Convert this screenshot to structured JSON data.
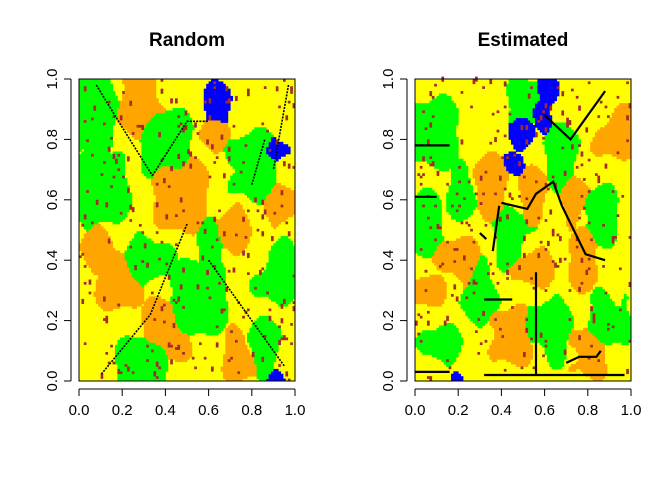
{
  "chart_data": [
    {
      "type": "heatmap",
      "title": "Random",
      "xlabel": "",
      "ylabel": "",
      "xlim": [
        0.0,
        1.0
      ],
      "ylim": [
        0.0,
        1.0
      ],
      "x_ticks": [
        "0.0",
        "0.2",
        "0.4",
        "0.6",
        "0.8",
        "1.0"
      ],
      "y_ticks": [
        "0.0",
        "0.2",
        "0.4",
        "0.6",
        "0.8",
        "1.0"
      ],
      "grid": false,
      "legend": "none",
      "colors": {
        "class1": "#ffff00",
        "class2": "#ffa500",
        "class3": "#00ff00",
        "class4": "#0000ff",
        "class5": "#a52a2a",
        "boundary": "#000000"
      },
      "regions": [
        {
          "color": "class3",
          "x": 0.05,
          "y": 0.9,
          "r": 0.14
        },
        {
          "color": "class3",
          "x": 0.1,
          "y": 0.62,
          "r": 0.13
        },
        {
          "color": "class3",
          "x": 0.4,
          "y": 0.8,
          "r": 0.12
        },
        {
          "color": "class3",
          "x": 0.82,
          "y": 0.72,
          "r": 0.12
        },
        {
          "color": "class3",
          "x": 0.55,
          "y": 0.27,
          "r": 0.14
        },
        {
          "color": "class3",
          "x": 0.32,
          "y": 0.4,
          "r": 0.1
        },
        {
          "color": "class3",
          "x": 0.92,
          "y": 0.35,
          "r": 0.1
        },
        {
          "color": "class3",
          "x": 0.3,
          "y": 0.05,
          "r": 0.12
        },
        {
          "color": "class3",
          "x": 0.86,
          "y": 0.12,
          "r": 0.09
        },
        {
          "color": "class3",
          "x": 0.62,
          "y": 0.45,
          "r": 0.08
        },
        {
          "color": "class2",
          "x": 0.28,
          "y": 0.92,
          "r": 0.12
        },
        {
          "color": "class2",
          "x": 0.48,
          "y": 0.62,
          "r": 0.13
        },
        {
          "color": "class2",
          "x": 0.18,
          "y": 0.33,
          "r": 0.1
        },
        {
          "color": "class2",
          "x": 0.7,
          "y": 0.5,
          "r": 0.09
        },
        {
          "color": "class2",
          "x": 0.4,
          "y": 0.17,
          "r": 0.11
        },
        {
          "color": "class2",
          "x": 0.75,
          "y": 0.08,
          "r": 0.08
        },
        {
          "color": "class2",
          "x": 0.95,
          "y": 0.58,
          "r": 0.08
        },
        {
          "color": "class2",
          "x": 0.62,
          "y": 0.83,
          "r": 0.07
        },
        {
          "color": "class2",
          "x": 0.08,
          "y": 0.44,
          "r": 0.08
        },
        {
          "color": "class4",
          "x": 0.65,
          "y": 0.9,
          "r": 0.08
        },
        {
          "color": "class4",
          "x": 0.88,
          "y": 0.76,
          "r": 0.07
        },
        {
          "color": "class4",
          "x": 0.32,
          "y": 0.01,
          "r": 0.03
        },
        {
          "color": "class4",
          "x": 0.92,
          "y": 0.0,
          "r": 0.03
        }
      ],
      "boundaries": [
        [
          [
            0.08,
            0.98
          ],
          [
            0.2,
            0.84
          ],
          [
            0.34,
            0.68
          ]
        ],
        [
          [
            0.34,
            0.68
          ],
          [
            0.5,
            0.86
          ],
          [
            0.6,
            0.86
          ]
        ],
        [
          [
            0.5,
            0.52
          ],
          [
            0.33,
            0.22
          ],
          [
            0.1,
            0.02
          ]
        ],
        [
          [
            0.6,
            0.4
          ],
          [
            0.95,
            0.05
          ]
        ],
        [
          [
            0.8,
            0.65
          ],
          [
            0.86,
            0.8
          ]
        ],
        [
          [
            0.97,
            0.98
          ],
          [
            0.9,
            0.7
          ]
        ]
      ]
    },
    {
      "type": "heatmap",
      "title": "Estimated",
      "xlabel": "",
      "ylabel": "",
      "xlim": [
        0.0,
        1.0
      ],
      "ylim": [
        0.0,
        1.0
      ],
      "x_ticks": [
        "0.0",
        "0.2",
        "0.4",
        "0.6",
        "0.8",
        "1.0"
      ],
      "y_ticks": [
        "0.0",
        "0.2",
        "0.4",
        "0.6",
        "0.8",
        "1.0"
      ],
      "grid": false,
      "legend": "none",
      "colors": {
        "class1": "#ffff00",
        "class2": "#ffa500",
        "class3": "#00ff00",
        "class4": "#0000ff",
        "class5": "#a52a2a",
        "boundary": "#000000"
      },
      "regions": [
        {
          "color": "class3",
          "x": 0.1,
          "y": 0.82,
          "r": 0.12
        },
        {
          "color": "class3",
          "x": 0.05,
          "y": 0.52,
          "r": 0.1
        },
        {
          "color": "class3",
          "x": 0.22,
          "y": 0.62,
          "r": 0.08
        },
        {
          "color": "class3",
          "x": 0.45,
          "y": 0.48,
          "r": 0.09
        },
        {
          "color": "class3",
          "x": 0.68,
          "y": 0.75,
          "r": 0.1
        },
        {
          "color": "class3",
          "x": 0.85,
          "y": 0.55,
          "r": 0.09
        },
        {
          "color": "class3",
          "x": 0.3,
          "y": 0.28,
          "r": 0.1
        },
        {
          "color": "class3",
          "x": 0.62,
          "y": 0.18,
          "r": 0.11
        },
        {
          "color": "class3",
          "x": 0.9,
          "y": 0.2,
          "r": 0.09
        },
        {
          "color": "class3",
          "x": 0.12,
          "y": 0.12,
          "r": 0.08
        },
        {
          "color": "class3",
          "x": 0.52,
          "y": 0.92,
          "r": 0.08
        },
        {
          "color": "class2",
          "x": 0.35,
          "y": 0.65,
          "r": 0.1
        },
        {
          "color": "class2",
          "x": 0.55,
          "y": 0.62,
          "r": 0.08
        },
        {
          "color": "class2",
          "x": 0.2,
          "y": 0.4,
          "r": 0.09
        },
        {
          "color": "class2",
          "x": 0.55,
          "y": 0.38,
          "r": 0.08
        },
        {
          "color": "class2",
          "x": 0.78,
          "y": 0.4,
          "r": 0.09
        },
        {
          "color": "class2",
          "x": 0.45,
          "y": 0.15,
          "r": 0.09
        },
        {
          "color": "class2",
          "x": 0.8,
          "y": 0.1,
          "r": 0.08
        },
        {
          "color": "class2",
          "x": 0.92,
          "y": 0.82,
          "r": 0.08
        },
        {
          "color": "class2",
          "x": 0.05,
          "y": 0.3,
          "r": 0.07
        },
        {
          "color": "class2",
          "x": 0.75,
          "y": 0.6,
          "r": 0.07
        },
        {
          "color": "class4",
          "x": 0.5,
          "y": 0.82,
          "r": 0.06
        },
        {
          "color": "class4",
          "x": 0.56,
          "y": 0.9,
          "r": 0.06
        },
        {
          "color": "class4",
          "x": 0.62,
          "y": 0.97,
          "r": 0.05
        },
        {
          "color": "class4",
          "x": 0.43,
          "y": 0.74,
          "r": 0.05
        },
        {
          "color": "class4",
          "x": 0.27,
          "y": 0.66,
          "r": 0.02
        },
        {
          "color": "class4",
          "x": 0.18,
          "y": 0.01,
          "r": 0.02
        }
      ],
      "boundaries": [
        [
          [
            0.0,
            0.78
          ],
          [
            0.16,
            0.78
          ]
        ],
        [
          [
            0.0,
            0.61
          ],
          [
            0.1,
            0.61
          ]
        ],
        [
          [
            0.0,
            0.03
          ],
          [
            0.16,
            0.03
          ]
        ],
        [
          [
            0.32,
            0.27
          ],
          [
            0.45,
            0.27
          ]
        ],
        [
          [
            0.32,
            0.02
          ],
          [
            0.97,
            0.02
          ]
        ],
        [
          [
            0.3,
            0.49
          ],
          [
            0.33,
            0.47
          ]
        ],
        [
          [
            0.4,
            0.59
          ],
          [
            0.52,
            0.57
          ],
          [
            0.56,
            0.62
          ],
          [
            0.64,
            0.66
          ],
          [
            0.68,
            0.58
          ],
          [
            0.79,
            0.42
          ],
          [
            0.88,
            0.4
          ]
        ],
        [
          [
            0.6,
            0.88
          ],
          [
            0.72,
            0.8
          ],
          [
            0.88,
            0.96
          ]
        ],
        [
          [
            0.7,
            0.06
          ],
          [
            0.76,
            0.08
          ],
          [
            0.84,
            0.08
          ],
          [
            0.86,
            0.1
          ]
        ],
        [
          [
            0.39,
            0.58
          ],
          [
            0.36,
            0.43
          ]
        ],
        [
          [
            0.56,
            0.36
          ],
          [
            0.56,
            0.02
          ]
        ]
      ],
      "noise_seed": 11
    }
  ]
}
